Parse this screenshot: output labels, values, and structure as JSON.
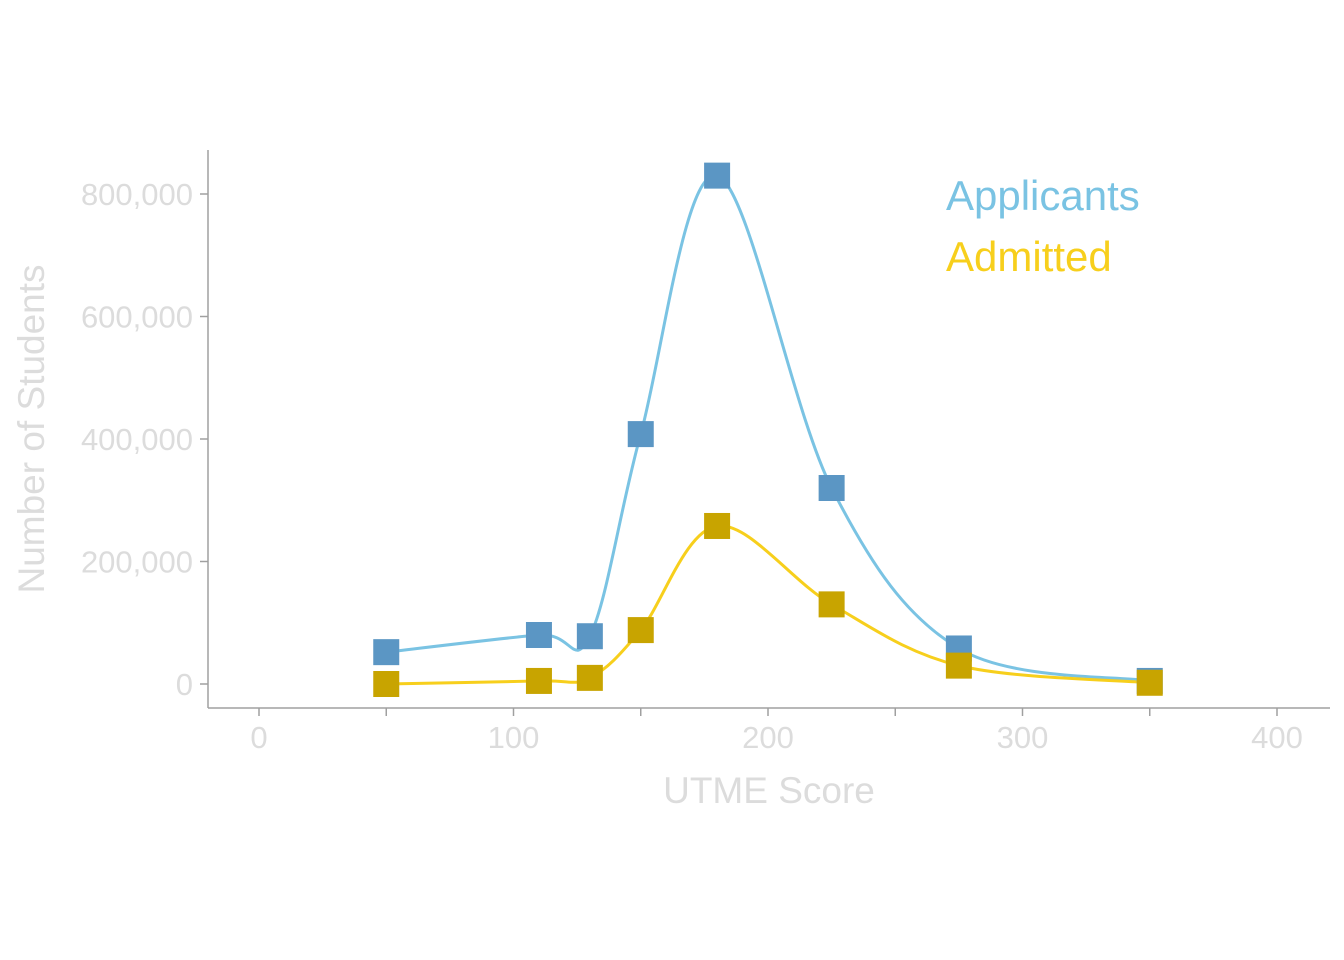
{
  "chart_data": {
    "type": "line",
    "xlabel": "UTME Score",
    "ylabel": "Number of Students",
    "xlim": [
      -20,
      420
    ],
    "ylim": [
      -40000,
      870000
    ],
    "x_ticks": [
      0,
      50,
      100,
      150,
      200,
      250,
      300,
      350,
      400
    ],
    "x_tick_labels": [
      "0",
      "",
      "100",
      "",
      "200",
      "",
      "300",
      "",
      "400"
    ],
    "y_ticks": [
      0,
      200000,
      400000,
      600000,
      800000
    ],
    "y_tick_labels": [
      "0",
      "200,000",
      "400,000",
      "600,000",
      "800,000"
    ],
    "grid": false,
    "legend_position": "top-right",
    "x": [
      50,
      110,
      130,
      150,
      180,
      225,
      275,
      350
    ],
    "series": [
      {
        "name": "Applicants",
        "values": [
          52000,
          80000,
          78000,
          408000,
          830000,
          320000,
          58000,
          5000
        ],
        "line_color": "#7ac3e3",
        "marker_color": "#5b96c4"
      },
      {
        "name": "Admitted",
        "values": [
          0,
          5000,
          10000,
          88000,
          258000,
          130000,
          30000,
          2000
        ],
        "line_color": "#f7cf1c",
        "marker_color": "#c8a400"
      }
    ]
  }
}
